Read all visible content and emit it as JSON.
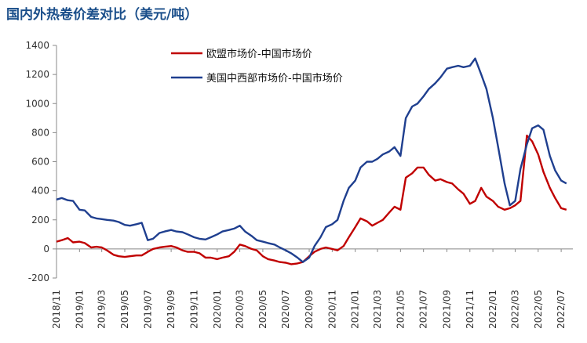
{
  "chart_data": {
    "type": "line",
    "title": "国内外热卷价差对比（美元/吨）",
    "ylim": [
      -200,
      1400
    ],
    "y_ticks": [
      -200,
      0,
      200,
      400,
      600,
      800,
      1000,
      1200,
      1400
    ],
    "x_ticks": [
      "2018/11",
      "2019/01",
      "2019/03",
      "2019/05",
      "2019/07",
      "2019/09",
      "2019/11",
      "2020/01",
      "2020/03",
      "2020/05",
      "2020/07",
      "2020/09",
      "2020/11",
      "2021/01",
      "2021/03",
      "2021/05",
      "2021/07",
      "2021/09",
      "2021/11",
      "2022/01",
      "2022/03",
      "2022/05",
      "2022/07"
    ],
    "grid": false,
    "legend_position": "top-center",
    "series": [
      {
        "name": "欧盟市场价-中国市场价",
        "color": "#c00000",
        "x": [
          "2018/11/01",
          "2018/11/15",
          "2018/12/01",
          "2018/12/15",
          "2019/01/01",
          "2019/01/15",
          "2019/02/01",
          "2019/02/15",
          "2019/03/01",
          "2019/03/15",
          "2019/04/01",
          "2019/04/15",
          "2019/05/01",
          "2019/05/15",
          "2019/06/01",
          "2019/06/15",
          "2019/07/01",
          "2019/07/15",
          "2019/08/01",
          "2019/08/15",
          "2019/09/01",
          "2019/09/15",
          "2019/10/01",
          "2019/10/15",
          "2019/11/01",
          "2019/11/15",
          "2019/12/01",
          "2019/12/15",
          "2020/01/01",
          "2020/01/15",
          "2020/02/01",
          "2020/02/15",
          "2020/03/01",
          "2020/03/15",
          "2020/04/01",
          "2020/04/15",
          "2020/05/01",
          "2020/05/15",
          "2020/06/01",
          "2020/06/15",
          "2020/07/01",
          "2020/07/15",
          "2020/08/01",
          "2020/08/15",
          "2020/09/01",
          "2020/09/15",
          "2020/10/01",
          "2020/10/15",
          "2020/11/01",
          "2020/11/15",
          "2020/12/01",
          "2020/12/15",
          "2021/01/01",
          "2021/01/15",
          "2021/02/01",
          "2021/02/15",
          "2021/03/01",
          "2021/03/15",
          "2021/04/01",
          "2021/04/15",
          "2021/05/01",
          "2021/05/15",
          "2021/06/01",
          "2021/06/15",
          "2021/07/01",
          "2021/07/15",
          "2021/08/01",
          "2021/08/15",
          "2021/09/01",
          "2021/09/15",
          "2021/10/01",
          "2021/10/15",
          "2021/11/01",
          "2021/11/15",
          "2021/12/01",
          "2021/12/15",
          "2022/01/01",
          "2022/01/15",
          "2022/02/01",
          "2022/02/15",
          "2022/03/01",
          "2022/03/15",
          "2022/04/01",
          "2022/04/15",
          "2022/05/01",
          "2022/05/15",
          "2022/06/01",
          "2022/06/15",
          "2022/07/01",
          "2022/07/15"
        ],
        "values": [
          50,
          60,
          75,
          45,
          50,
          40,
          10,
          15,
          10,
          -10,
          -40,
          -50,
          -55,
          -50,
          -45,
          -45,
          -20,
          0,
          10,
          15,
          20,
          10,
          -10,
          -20,
          -20,
          -30,
          -60,
          -60,
          -70,
          -60,
          -50,
          -20,
          30,
          20,
          0,
          -10,
          -50,
          -70,
          -80,
          -90,
          -95,
          -105,
          -100,
          -90,
          -50,
          -20,
          0,
          10,
          0,
          -10,
          20,
          80,
          150,
          210,
          190,
          160,
          180,
          200,
          250,
          290,
          270,
          490,
          520,
          560,
          560,
          510,
          470,
          480,
          460,
          450,
          410,
          380,
          310,
          330,
          420,
          360,
          330,
          290,
          270,
          280,
          300,
          330,
          780,
          740,
          650,
          530,
          420,
          350,
          280,
          270
        ]
      },
      {
        "name": "美国中西部市场价-中国市场价",
        "color": "#1f3f8f",
        "x": [
          "2018/11/01",
          "2018/11/15",
          "2018/12/01",
          "2018/12/15",
          "2019/01/01",
          "2019/01/15",
          "2019/02/01",
          "2019/02/15",
          "2019/03/01",
          "2019/03/15",
          "2019/04/01",
          "2019/04/15",
          "2019/05/01",
          "2019/05/15",
          "2019/06/01",
          "2019/06/15",
          "2019/07/01",
          "2019/07/15",
          "2019/08/01",
          "2019/08/15",
          "2019/09/01",
          "2019/09/15",
          "2019/10/01",
          "2019/10/15",
          "2019/11/01",
          "2019/11/15",
          "2019/12/01",
          "2019/12/15",
          "2020/01/01",
          "2020/01/15",
          "2020/02/01",
          "2020/02/15",
          "2020/03/01",
          "2020/03/15",
          "2020/04/01",
          "2020/04/15",
          "2020/05/01",
          "2020/05/15",
          "2020/06/01",
          "2020/06/15",
          "2020/07/01",
          "2020/07/15",
          "2020/08/01",
          "2020/08/15",
          "2020/09/01",
          "2020/09/15",
          "2020/10/01",
          "2020/10/15",
          "2020/11/01",
          "2020/11/15",
          "2020/12/01",
          "2020/12/15",
          "2021/01/01",
          "2021/01/15",
          "2021/02/01",
          "2021/02/15",
          "2021/03/01",
          "2021/03/15",
          "2021/04/01",
          "2021/04/15",
          "2021/05/01",
          "2021/05/15",
          "2021/06/01",
          "2021/06/15",
          "2021/07/01",
          "2021/07/15",
          "2021/08/01",
          "2021/08/15",
          "2021/09/01",
          "2021/09/15",
          "2021/10/01",
          "2021/10/15",
          "2021/11/01",
          "2021/11/15",
          "2021/12/01",
          "2021/12/15",
          "2022/01/01",
          "2022/01/15",
          "2022/02/01",
          "2022/02/15",
          "2022/03/01",
          "2022/03/15",
          "2022/04/01",
          "2022/04/15",
          "2022/05/01",
          "2022/05/15",
          "2022/06/01",
          "2022/06/15",
          "2022/07/01",
          "2022/07/15"
        ],
        "values": [
          340,
          350,
          335,
          330,
          270,
          265,
          220,
          210,
          205,
          200,
          195,
          185,
          165,
          160,
          170,
          180,
          60,
          70,
          110,
          120,
          130,
          120,
          115,
          100,
          80,
          70,
          65,
          80,
          100,
          120,
          130,
          140,
          160,
          120,
          90,
          60,
          50,
          40,
          30,
          10,
          -10,
          -30,
          -60,
          -90,
          -60,
          20,
          80,
          150,
          170,
          200,
          330,
          420,
          470,
          560,
          600,
          600,
          620,
          650,
          670,
          700,
          640,
          900,
          980,
          1000,
          1050,
          1100,
          1140,
          1180,
          1240,
          1250,
          1260,
          1250,
          1260,
          1310,
          1200,
          1100,
          900,
          700,
          450,
          300,
          330,
          550,
          720,
          830,
          850,
          820,
          640,
          540,
          470,
          450
        ]
      }
    ]
  }
}
